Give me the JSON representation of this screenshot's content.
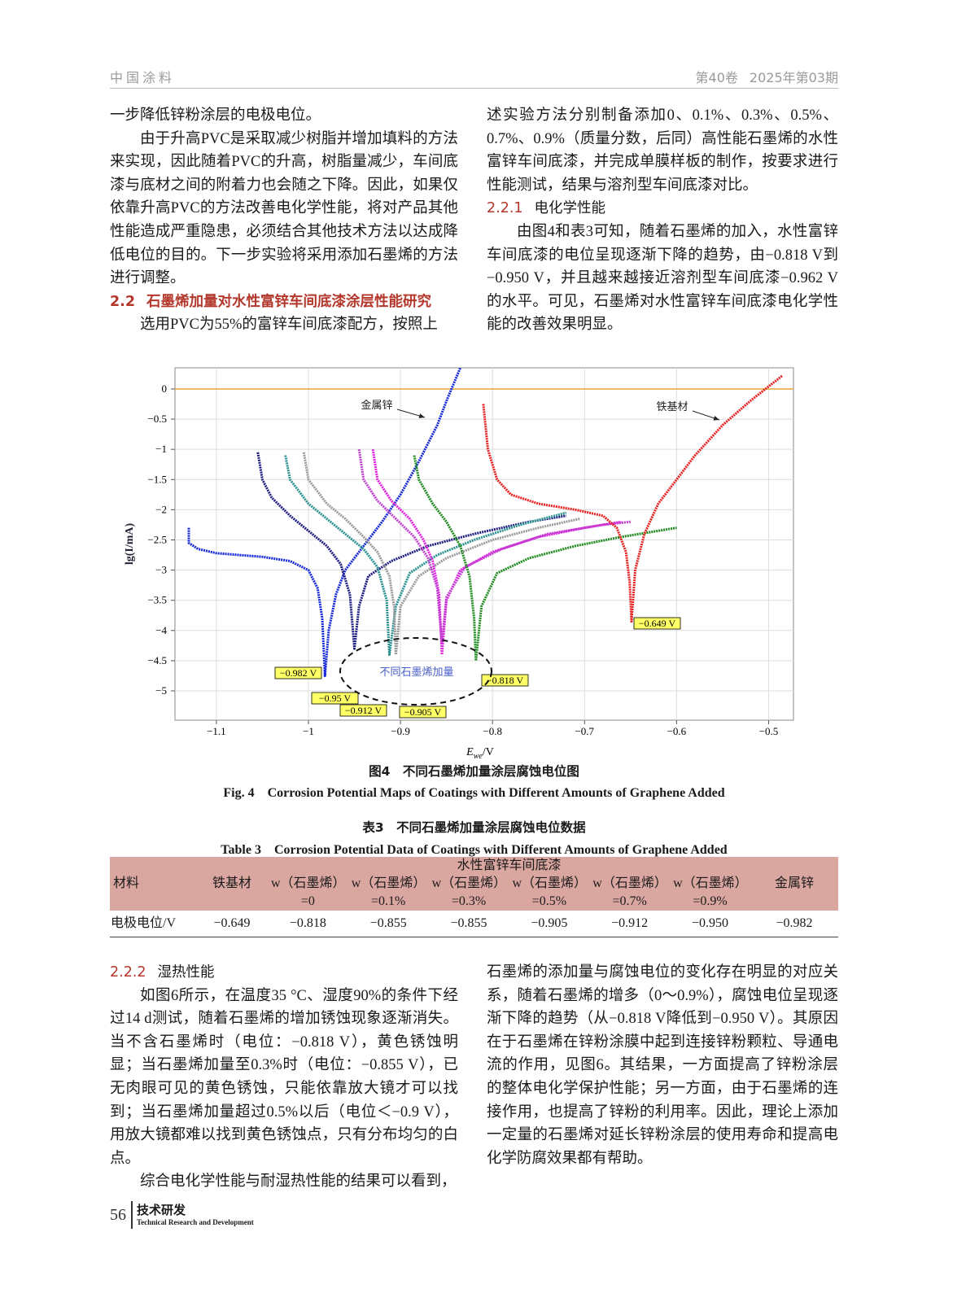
{
  "header": {
    "journal": "中国涂料",
    "volume": "第40卷",
    "issue": "2025年第03期"
  },
  "top_left": [
    {
      "text": "一步降低锌粉涂层的电极电位。"
    },
    {
      "text": "由于升高PVC是采取减少树脂并增加填料的方法来实现，因此随着PVC的升高，树脂量减少，车间底漆与底材之间的附着力也会随之下降。因此，如果仅依靠升高PVC的方法改善电化学性能，将对产品其他性能造成严重隐患，必须结合其他技术方法以达成降低电位的目的。下一步实验将采用添加石墨烯的方法进行调整。"
    },
    {
      "number": "2.2",
      "heading": "石墨烯加量对水性富锌车间底漆涂层性能研究"
    },
    {
      "text": "选用PVC为55%的富锌车间底漆配方，按照上"
    }
  ],
  "top_right": [
    {
      "text": "述实验方法分别制备添加0、0.1%、0.3%、0.5%、0.7%、0.9%（质量分数，后同）高性能石墨烯的水性富锌车间底漆，并完成单膜样板的制作，按要求进行性能测试，结果与溶剂型车间底漆对比。"
    },
    {
      "number": "2.2.1",
      "heading": "电化学性能"
    },
    {
      "text": "由图4和表3可知，随着石墨烯的加入，水性富锌车间底漆的电位呈现逐渐下降的趋势，由−0.818 V到−0.950 V，并且越来越接近溶剂型车间底漆−0.962 V的水平。可见，石墨烯对水性富锌车间底漆电化学性能的改善效果明显。"
    }
  ],
  "chart_data": {
    "type": "line",
    "xlim": [
      -1.145,
      -0.473
    ],
    "ylim": [
      -5.485,
      0.35
    ],
    "xticks": [
      {
        "value": -1.1,
        "label": "−1.1"
      },
      {
        "value": -1,
        "label": "−1"
      },
      {
        "value": -0.9,
        "label": "−0.9"
      },
      {
        "value": -0.8,
        "label": "−0.8"
      },
      {
        "value": -0.7,
        "label": "−0.7"
      },
      {
        "value": -0.6,
        "label": "−0.6"
      },
      {
        "value": -0.5,
        "label": "−0.5"
      }
    ],
    "yticks": [
      0,
      {
        "value": -0.5,
        "label": "−0.5"
      },
      {
        "value": -1,
        "label": "−1"
      },
      {
        "value": -1.5,
        "label": "−1.5"
      },
      {
        "value": -2,
        "label": "−2"
      },
      {
        "value": -2.5,
        "label": "−2.5"
      },
      {
        "value": -3,
        "label": "−3"
      },
      {
        "value": -3.5,
        "label": "−3.5"
      },
      {
        "value": -4,
        "label": "−4"
      },
      {
        "value": -4.5,
        "label": "−4.5"
      },
      {
        "value": -5,
        "label": "−5"
      }
    ],
    "grid": true,
    "hline": 0,
    "hline_color": "#e8a33d",
    "x_label": {
      "main": "E",
      "sub": "we",
      "unit": "/V"
    },
    "y_label": "lg(I/mA)",
    "annotations": [
      "金属锌",
      "铁基材",
      "不同石墨烯加量"
    ],
    "series": [
      {
        "color": "#1428d8",
        "min_label": "−0.982 V",
        "x": [
          -1.13,
          -1.13,
          -1.12,
          -1.1,
          -1.05,
          -1.02,
          -1.0,
          -0.99,
          -0.985,
          -0.982,
          -0.978,
          -0.97,
          -0.96,
          -0.94,
          -0.92,
          -0.9,
          -0.88,
          -0.86,
          -0.85,
          -0.835
        ],
        "values": [
          -2.3,
          -2.55,
          -2.65,
          -2.72,
          -2.78,
          -2.85,
          -3.0,
          -3.3,
          -3.8,
          -4.75,
          -4.0,
          -3.4,
          -3.0,
          -2.6,
          -2.2,
          -1.75,
          -1.2,
          -0.6,
          -0.2,
          0.35
        ]
      },
      {
        "color": "#1c1c80",
        "min_label": "−0.95 V",
        "x": [
          -1.055,
          -1.05,
          -1.04,
          -1.02,
          -1.0,
          -0.98,
          -0.965,
          -0.955,
          -0.95,
          -0.945,
          -0.935,
          -0.91,
          -0.87,
          -0.82,
          -0.76,
          -0.72
        ],
        "values": [
          -1.05,
          -1.5,
          -1.8,
          -2.1,
          -2.35,
          -2.6,
          -2.9,
          -3.4,
          -4.3,
          -3.6,
          -3.1,
          -2.85,
          -2.6,
          -2.4,
          -2.2,
          -2.1
        ]
      },
      {
        "color": "#2a9090",
        "min_label": "−0.912 V",
        "x": [
          -1.025,
          -1.02,
          -1.0,
          -0.98,
          -0.96,
          -0.94,
          -0.925,
          -0.915,
          -0.912,
          -0.905,
          -0.89,
          -0.86,
          -0.82,
          -0.77,
          -0.72
        ],
        "values": [
          -1.1,
          -1.5,
          -1.9,
          -2.15,
          -2.4,
          -2.65,
          -2.95,
          -3.5,
          -4.4,
          -3.6,
          -3.05,
          -2.75,
          -2.5,
          -2.25,
          -2.05
        ]
      },
      {
        "color": "#9a9a9a",
        "min_label": "−0.905 V",
        "x": [
          -1.005,
          -1.0,
          -0.98,
          -0.96,
          -0.94,
          -0.925,
          -0.912,
          -0.907,
          -0.905,
          -0.9,
          -0.88,
          -0.85,
          -0.8,
          -0.75,
          -0.705
        ],
        "values": [
          -1.05,
          -1.5,
          -1.9,
          -2.15,
          -2.45,
          -2.7,
          -3.1,
          -3.6,
          -4.4,
          -3.6,
          -3.1,
          -2.8,
          -2.5,
          -2.3,
          -2.15
        ]
      },
      {
        "color": "#e020e0",
        "x": [
          -0.93,
          -0.925,
          -0.91,
          -0.89,
          -0.875,
          -0.865,
          -0.858,
          -0.855,
          -0.85,
          -0.835,
          -0.8,
          -0.75,
          -0.7,
          -0.66
        ],
        "values": [
          -1.0,
          -1.5,
          -1.85,
          -2.15,
          -2.5,
          -2.85,
          -3.4,
          -4.4,
          -3.5,
          -3.0,
          -2.7,
          -2.45,
          -2.3,
          -2.2
        ]
      },
      {
        "color": "#c040d0",
        "x": [
          -0.945,
          -0.94,
          -0.925,
          -0.905,
          -0.885,
          -0.87,
          -0.86,
          -0.855,
          -0.85,
          -0.83,
          -0.79,
          -0.74,
          -0.68,
          -0.65
        ],
        "values": [
          -1.0,
          -1.5,
          -1.85,
          -2.15,
          -2.45,
          -2.8,
          -3.3,
          -4.2,
          -3.45,
          -2.95,
          -2.65,
          -2.4,
          -2.25,
          -2.2
        ]
      },
      {
        "color": "#1f8a1f",
        "min_label": "−0.818 V",
        "x": [
          -0.885,
          -0.88,
          -0.865,
          -0.85,
          -0.835,
          -0.825,
          -0.82,
          -0.818,
          -0.812,
          -0.795,
          -0.76,
          -0.71,
          -0.66,
          -0.6
        ],
        "values": [
          -1.1,
          -1.5,
          -1.9,
          -2.2,
          -2.6,
          -3.1,
          -3.8,
          -4.5,
          -3.6,
          -3.05,
          -2.8,
          -2.6,
          -2.45,
          -2.3
        ]
      },
      {
        "color": "#e82020",
        "min_label": "−0.649 V",
        "x": [
          -0.81,
          -0.805,
          -0.795,
          -0.78,
          -0.75,
          -0.71,
          -0.68,
          -0.665,
          -0.655,
          -0.651,
          -0.649,
          -0.645,
          -0.635,
          -0.62,
          -0.6,
          -0.58,
          -0.55,
          -0.52,
          -0.485
        ],
        "values": [
          -0.25,
          -1.0,
          -1.5,
          -1.75,
          -1.9,
          -2.0,
          -2.1,
          -2.3,
          -2.7,
          -3.2,
          -3.85,
          -3.0,
          -2.4,
          -1.9,
          -1.5,
          -1.1,
          -0.6,
          -0.2,
          0.22
        ]
      }
    ]
  },
  "figure": {
    "caption_cn": "图4　不同石墨烯加量涂层腐蚀电位图",
    "caption_en": "Fig. 4　Corrosion Potential Maps of Coatings with Different Amounts of Graphene Added"
  },
  "table": {
    "caption_cn": "表3　不同石墨烯加量涂层腐蚀电位数据",
    "caption_en": "Table 3　Corrosion Potential Data of Coatings with Different Amounts of Graphene Added",
    "header": [
      "材料",
      "铁基材",
      "水性富锌车间底漆",
      "金属锌"
    ],
    "subheader": [
      [
        "w（石墨烯）",
        "=0"
      ],
      [
        "w（石墨烯）",
        "=0.1%"
      ],
      [
        "w（石墨烯）",
        "=0.3%"
      ],
      [
        "w（石墨烯）",
        "=0.5%"
      ],
      [
        "w（石墨烯）",
        "=0.7%"
      ],
      [
        "w（石墨烯）",
        "=0.9%"
      ]
    ],
    "rows": [
      [
        "电极电位/V",
        "−0.649",
        "−0.818",
        "−0.855",
        "−0.855",
        "−0.905",
        "−0.912",
        "−0.950",
        "−0.982"
      ]
    ]
  },
  "bottom_left": [
    {
      "number": "2.2.2",
      "heading": "湿热性能"
    },
    {
      "text": "如图6所示，在温度35 °C、湿度90%的条件下经过14 d测试，随着石墨烯的增加锈蚀现象逐渐消失。当不含石墨烯时（电位：−0.818 V），黄色锈蚀明显；当石墨烯加量至0.3%时（电位：−0.855 V），已无肉眼可见的黄色锈蚀，只能依靠放大镜才可以找到；当石墨烯加量超过0.5%以后（电位＜−0.9 V），用放大镜都难以找到黄色锈蚀点，只有分布均匀的白点。"
    },
    {
      "text": "综合电化学性能与耐湿热性能的结果可以看到，"
    }
  ],
  "bottom_right": [
    {
      "text": "石墨烯的添加量与腐蚀电位的变化存在明显的对应关系，随着石墨烯的增多（0～0.9%），腐蚀电位呈现逐渐下降的趋势（从−0.818 V降低到−0.950 V）。其原因在于石墨烯在锌粉涂膜中起到连接锌粉颗粒、导通电流的作用，见图6。其结果，一方面提高了锌粉涂层的整体电化学保护性能；另一方面，由于石墨烯的连接作用，也提高了锌粉的利用率。因此，理论上添加一定量的石墨烯对延长锌粉涂层的使用寿命和提高电化学防腐效果都有帮助。"
    }
  ],
  "footer": {
    "page": "56",
    "section": "技术研发",
    "section_en": "Technical Research and Development"
  }
}
